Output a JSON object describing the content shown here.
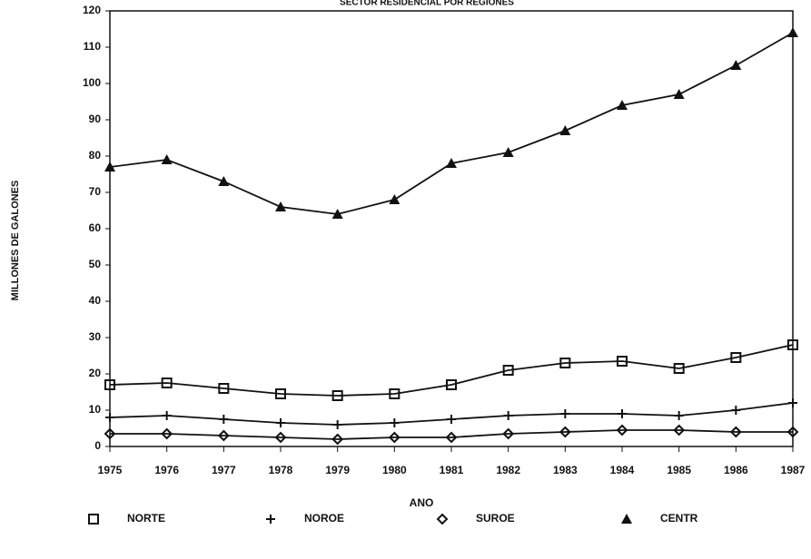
{
  "chart_data": {
    "type": "line",
    "title": "SECTOR RESIDENCIAL POR REGIONES",
    "x_label": "ANO",
    "y_label": "MILLONES DE GALONES",
    "categories": [
      "1975",
      "1976",
      "1977",
      "1978",
      "1979",
      "1980",
      "1981",
      "1982",
      "1983",
      "1984",
      "1985",
      "1986",
      "1987"
    ],
    "series": [
      {
        "name": "NORTE",
        "marker": "square",
        "color": "#111111",
        "values": [
          17,
          17.5,
          16,
          14.5,
          14,
          14.5,
          17,
          21,
          23,
          23.5,
          21.5,
          24.5,
          28
        ]
      },
      {
        "name": "NOROE",
        "marker": "plus",
        "color": "#111111",
        "values": [
          8,
          8.5,
          7.5,
          6.5,
          6,
          6.5,
          7.5,
          8.5,
          9,
          9,
          8.5,
          10,
          12
        ]
      },
      {
        "name": "SUROE",
        "marker": "diamond",
        "color": "#111111",
        "values": [
          3.5,
          3.5,
          3,
          2.5,
          2,
          2.5,
          2.5,
          3.5,
          4,
          4.5,
          4.5,
          4,
          4
        ]
      },
      {
        "name": "CENTR",
        "marker": "triangle",
        "color": "#111111",
        "values": [
          77,
          79,
          73,
          66,
          64,
          68,
          78,
          81,
          87,
          94,
          97,
          105,
          114
        ]
      }
    ],
    "ylim": [
      0,
      120
    ],
    "yticks": [
      0,
      10,
      20,
      30,
      40,
      50,
      60,
      70,
      80,
      90,
      100,
      110,
      120
    ],
    "legend": "bottom"
  }
}
